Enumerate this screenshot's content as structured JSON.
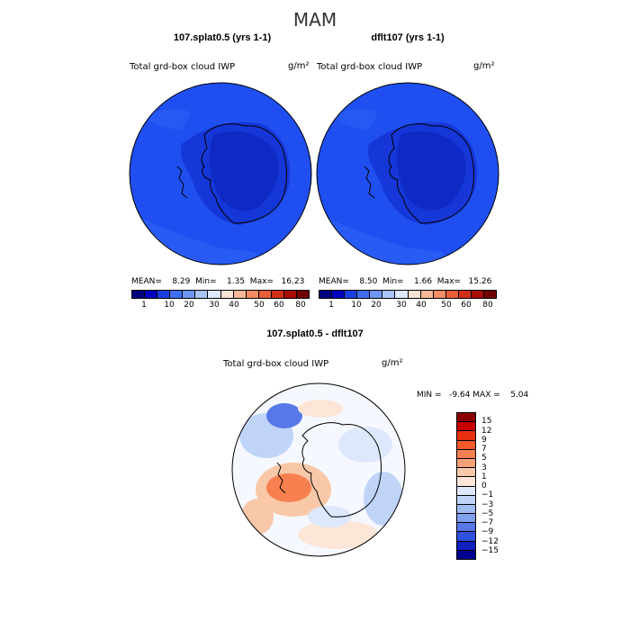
{
  "figure": {
    "season": "MAM",
    "left_panel": {
      "title": "107.splat0.5 (yrs 1-1)",
      "variable": "Total grd-box cloud IWP",
      "unit": "g/m²",
      "stats": "MEAN=    8.29  Min=    1.35  Max=   16.23"
    },
    "right_panel": {
      "title": "dflt107 (yrs 1-1)",
      "variable": "Total grd-box cloud IWP",
      "unit": "g/m²",
      "stats": "MEAN=    8.50  Min=    1.66  Max=   15.26"
    },
    "diff_panel": {
      "title": "107.splat0.5 - dflt107",
      "variable": "Total grd-box cloud IWP",
      "unit": "g/m²",
      "stats": "MIN =   -9.64 MAX =    5.04"
    },
    "top_colorbar": {
      "colors": [
        "#000080",
        "#0000c0",
        "#1a3fe0",
        "#3f6ef0",
        "#6e96f0",
        "#a8c4f8",
        "#dde8fc",
        "#fbe3d4",
        "#f8b898",
        "#f48c64",
        "#e85c38",
        "#d03018",
        "#a80c08",
        "#700000"
      ],
      "labels": [
        "1",
        "10",
        "20",
        "30",
        "40",
        "50",
        "60",
        "80"
      ]
    },
    "diff_colorbar": {
      "colors": [
        "#8b0000",
        "#c80000",
        "#e83010",
        "#f85a28",
        "#f88050",
        "#f8a078",
        "#f8c8a8",
        "#fde6d8",
        "#dde8fc",
        "#c0d4f8",
        "#a0bcf4",
        "#80a0f0",
        "#5878e8",
        "#3050e0",
        "#1020c0",
        "#000090"
      ],
      "labels": [
        "15",
        "12",
        "9",
        "7",
        "5",
        "3",
        "1",
        "0",
        "−1",
        "−3",
        "−5",
        "−7",
        "−9",
        "−12",
        "−15"
      ]
    }
  }
}
